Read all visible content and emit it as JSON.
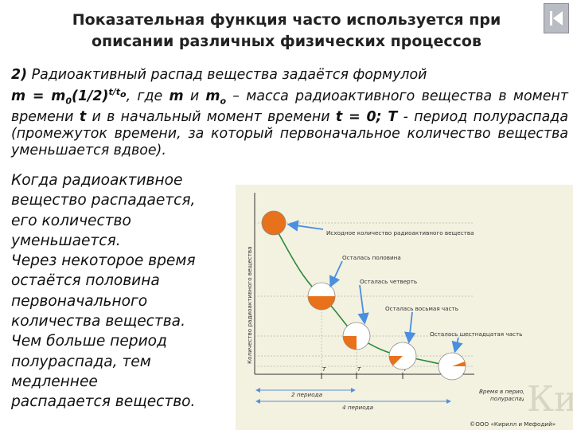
{
  "title": {
    "line1": "Показательная функция часто используется при",
    "line2": "описании различных физических процессов"
  },
  "paragraph": {
    "num": "2)",
    "intro": " Радиоактивный распад вещества задаётся формулой",
    "f_m": "m = m",
    "f_sub": "0",
    "f_base": "(1/2)",
    "f_exp": "t/t",
    "f_exp_sub": "o",
    "where": ", где ",
    "m1": "m",
    "and": " и ",
    "m0": "m",
    "m0_sub": "o",
    "rest1": " – масса радиоактивного вещества в момент времени ",
    "t1": "t",
    "rest2": " и в начальный момент времени ",
    "t0": "t = 0; T",
    "rest3": " - период полураспада (промежуток времени, за который первоначальное количество вещества уменьшается вдвое)."
  },
  "left_text": [
    "Когда радиоактивное",
    "вещество распадается,",
    "его количество",
    "уменьшается.",
    "Через некоторое время",
    "остаётся половина",
    "первоначального",
    "количества вещества.",
    "Чем больше период",
    "полураспада, тем",
    "медленнее",
    "распадается вещество."
  ],
  "figure": {
    "y_axis_label": "Количество радиоактивного вещества",
    "labels": {
      "initial": "Исходное количество радиоактивного вещества",
      "half": "Осталась половина",
      "quarter": "Осталась четверть",
      "eighth": "Осталась восьмая часть",
      "sixteenth": "Осталась шестнадцатая часть"
    },
    "tick_T": "T",
    "period_2": "2 периода",
    "period_4": "4 периода",
    "time_label_1": "Время в периодах",
    "time_label_2": "полураспада",
    "copyright": "©ООО «Кирилл и Мефодий»",
    "logo_letters": "КиМ",
    "colors": {
      "fill": "#e8711c",
      "arrow": "#4a8fe0",
      "curve": "#2a8a3a",
      "bg": "#f3f1e0"
    }
  },
  "chart_data": {
    "type": "line",
    "title": "",
    "xlabel": "Время в периодах полураспада",
    "ylabel": "Количество радиоактивного вещества",
    "x": [
      0,
      1,
      2,
      3,
      4
    ],
    "series": [
      {
        "values": [
          1,
          0.5,
          0.25,
          0.125,
          0.0625
        ]
      }
    ]
  }
}
